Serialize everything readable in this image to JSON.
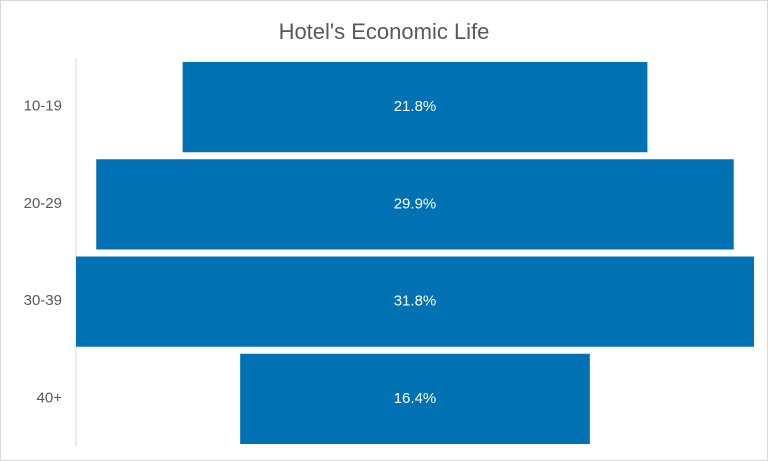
{
  "chart_data": {
    "type": "funnel",
    "title": "Hotel's Economic Life",
    "categories": [
      "10-19",
      "20-29",
      "30-39",
      "40+"
    ],
    "values": [
      21.8,
      29.9,
      31.8,
      16.4
    ],
    "value_labels": [
      "21.8%",
      "29.9%",
      "31.8%",
      "16.4%"
    ],
    "color": "#0071b3"
  }
}
